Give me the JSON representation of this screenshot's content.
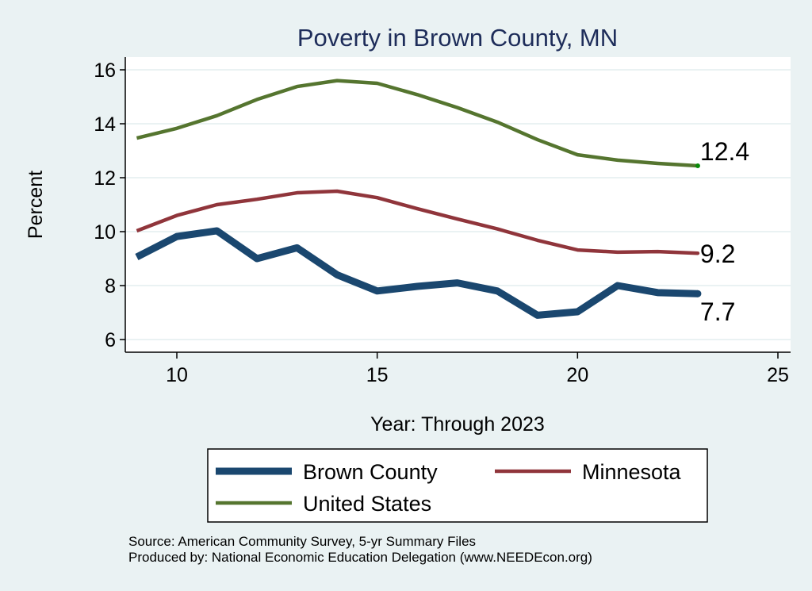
{
  "chart_data": {
    "type": "line",
    "title": "Poverty in Brown County, MN",
    "xlabel": "Year: Through 2023",
    "ylabel": "Percent",
    "xlim": [
      8.3,
      25.3
    ],
    "ylim": [
      5.5,
      16.5
    ],
    "xticks": [
      10,
      15,
      20,
      25
    ],
    "yticks": [
      6,
      8,
      10,
      12,
      14,
      16
    ],
    "grid": true,
    "legend_position": "bottom",
    "x": [
      9,
      10,
      11,
      12,
      13,
      14,
      15,
      16,
      17,
      18,
      19,
      20,
      21,
      22,
      23
    ],
    "series": [
      {
        "name": "Brown County",
        "color": "#1a476f",
        "values": [
          9.06,
          9.82,
          10.03,
          9.0,
          9.4,
          8.4,
          7.8,
          7.97,
          8.1,
          7.8,
          6.9,
          7.03,
          8.0,
          7.74,
          7.7
        ],
        "end_label": "7.7"
      },
      {
        "name": "Minnesota",
        "color": "#90353b",
        "values": [
          10.03,
          10.6,
          11.0,
          11.2,
          11.44,
          11.5,
          11.26,
          10.85,
          10.47,
          10.1,
          9.68,
          9.32,
          9.24,
          9.26,
          9.2
        ],
        "end_label": "9.2"
      },
      {
        "name": "United States",
        "color": "#55752f",
        "values": [
          13.47,
          13.83,
          14.3,
          14.9,
          15.38,
          15.6,
          15.5,
          15.08,
          14.6,
          14.06,
          13.41,
          12.85,
          12.65,
          12.53,
          12.44
        ],
        "end_label": "12.4"
      }
    ],
    "notes": [
      "Source: American Community Survey, 5-yr Summary Files",
      "Produced by: National Economic Education Delegation (www.NEEDEcon.org)"
    ]
  }
}
